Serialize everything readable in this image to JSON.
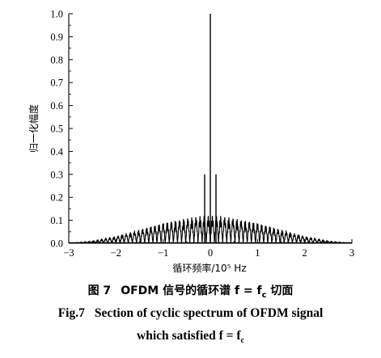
{
  "chart_data": {
    "type": "line",
    "title": "",
    "xlabel": "循环频率/10⁵ Hz",
    "ylabel": "归一化幅度",
    "xlim": [
      -3,
      3
    ],
    "ylim": [
      0,
      1.0
    ],
    "x_ticks": [
      "−3",
      "−2",
      "−1",
      "0",
      "1",
      "2",
      "3"
    ],
    "y_ticks": [
      "0.0",
      "0.1",
      "0.2",
      "0.3",
      "0.4",
      "0.5",
      "0.6",
      "0.7",
      "0.8",
      "0.9",
      "1.0"
    ],
    "grid": false,
    "line_color": "#000000",
    "peaks": [
      {
        "x": 0.0,
        "y": 1.0
      },
      {
        "x": -0.12,
        "y": 0.3
      },
      {
        "x": 0.12,
        "y": 0.3
      }
    ],
    "envelope": {
      "x": [
        -3.0,
        -2.5,
        -2.0,
        -1.5,
        -1.0,
        -0.5,
        -0.2,
        0.2,
        0.5,
        1.0,
        1.5,
        2.0,
        2.5,
        3.0
      ],
      "y": [
        0.0,
        0.01,
        0.03,
        0.06,
        0.09,
        0.11,
        0.12,
        0.12,
        0.11,
        0.09,
        0.06,
        0.03,
        0.01,
        0.0
      ]
    }
  },
  "caption": {
    "cn_prefix": "图 7",
    "cn_text": "OFDM 信号的循环谱 f = f",
    "cn_sub": "c",
    "cn_suffix": " 切面",
    "en_line1_prefix": "Fig.7",
    "en_line1_text": "Section of cyclic spectrum of OFDM signal",
    "en_line2_text": "which satisfied f = f",
    "en_line2_sub": "c"
  }
}
